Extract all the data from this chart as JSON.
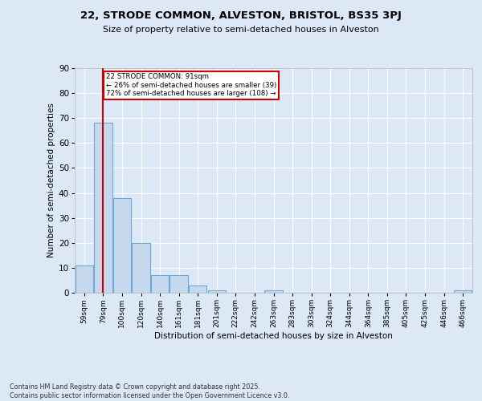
{
  "title_line1": "22, STRODE COMMON, ALVESTON, BRISTOL, BS35 3PJ",
  "title_line2": "Size of property relative to semi-detached houses in Alveston",
  "xlabel": "Distribution of semi-detached houses by size in Alveston",
  "ylabel": "Number of semi-detached properties",
  "categories": [
    "59sqm",
    "79sqm",
    "100sqm",
    "120sqm",
    "140sqm",
    "161sqm",
    "181sqm",
    "201sqm",
    "222sqm",
    "242sqm",
    "263sqm",
    "283sqm",
    "303sqm",
    "324sqm",
    "344sqm",
    "364sqm",
    "385sqm",
    "405sqm",
    "425sqm",
    "446sqm",
    "466sqm"
  ],
  "values": [
    11,
    68,
    38,
    20,
    7,
    7,
    3,
    1,
    0,
    0,
    1,
    0,
    0,
    0,
    0,
    0,
    0,
    0,
    0,
    0,
    1
  ],
  "bar_color": "#c5d8ed",
  "bar_edge_color": "#6aaad4",
  "annotation_text": "22 STRODE COMMON: 91sqm\n← 26% of semi-detached houses are smaller (39)\n72% of semi-detached houses are larger (108) →",
  "annotation_box_color": "#ffffff",
  "annotation_box_edge_color": "#cc0000",
  "vline_color": "#cc0000",
  "vline_x_index": 1,
  "ylim": [
    0,
    90
  ],
  "yticks": [
    0,
    10,
    20,
    30,
    40,
    50,
    60,
    70,
    80,
    90
  ],
  "background_color": "#dce8f5",
  "plot_bg_color": "#dce8f5",
  "footer": "Contains HM Land Registry data © Crown copyright and database right 2025.\nContains public sector information licensed under the Open Government Licence v3.0."
}
